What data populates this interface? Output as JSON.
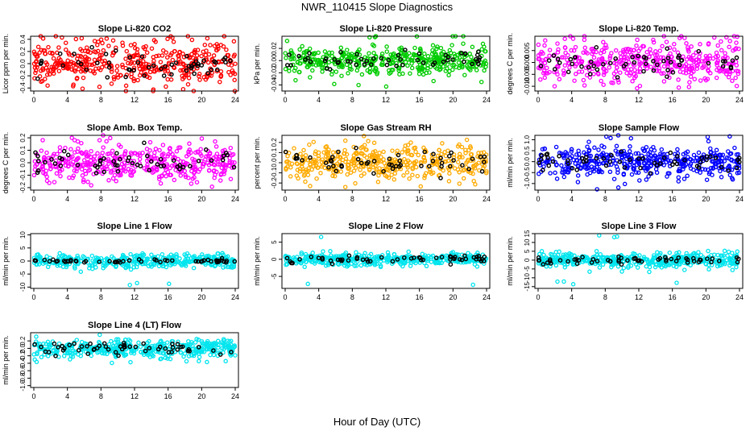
{
  "title": "NWR_110415  Slope Diagnostics",
  "xlabel": "Hour of Day (UTC)",
  "chart_data": [
    {
      "type": "scatter",
      "title": "Slope Li-820 CO2",
      "ylabel": "Licor ppm per min.",
      "color": "#ff0000",
      "xlim": [
        0,
        24
      ],
      "ylim": [
        -0.45,
        0.45
      ],
      "yticks": [
        "0.4",
        "0.2",
        "0.0",
        "-0.2",
        "-0.4"
      ],
      "ytick_values": [
        0.4,
        0.2,
        0.0,
        -0.2,
        -0.4
      ],
      "xticks": [
        "0",
        "4",
        "8",
        "12",
        "16",
        "20",
        "24"
      ],
      "spread": 0.17,
      "black_spread": 0.1,
      "outlier": 0.45
    },
    {
      "type": "scatter",
      "title": "Slope Li-820 Pressure",
      "ylabel": "kPa per min.",
      "color": "#00cc00",
      "xlim": [
        0,
        24
      ],
      "ylim": [
        -0.05,
        0.04
      ],
      "yticks": [
        "0.02",
        "0.00",
        "-0.02",
        "-0.04"
      ],
      "ytick_values": [
        0.02,
        0.0,
        -0.02,
        -0.04
      ],
      "xticks": [
        "0",
        "4",
        "8",
        "12",
        "16",
        "20",
        "24"
      ],
      "spread": 0.012,
      "black_spread": 0.008,
      "outlier": 0.045
    },
    {
      "type": "scatter",
      "title": "Slope Li-820 Temp.",
      "ylabel": "degrees C per min.",
      "color": "#ff00ff",
      "xlim": [
        0,
        24
      ],
      "ylim": [
        -0.012,
        0.011
      ],
      "yticks": [
        "0.005",
        "0.000",
        "-0.005",
        "-0.010"
      ],
      "ytick_values": [
        0.005,
        0.0,
        -0.005,
        -0.01
      ],
      "xticks": [
        "0",
        "4",
        "8",
        "12",
        "16",
        "20",
        "24"
      ],
      "spread": 0.0045,
      "black_spread": 0.003,
      "outlier": 0.011
    },
    {
      "type": "scatter",
      "title": "Slope Amb. Box Temp.",
      "ylabel": "degrees C per min.",
      "color": "#ff00ff",
      "xlim": [
        0,
        24
      ],
      "ylim": [
        -0.22,
        0.22
      ],
      "yticks": [
        "0.2",
        "0.1",
        "0.0",
        "-0.1",
        "-0.2"
      ],
      "ytick_values": [
        0.2,
        0.1,
        0.0,
        -0.1,
        -0.2
      ],
      "xticks": [
        "0",
        "4",
        "8",
        "12",
        "16",
        "20",
        "24"
      ],
      "spread": 0.07,
      "black_spread": 0.06,
      "outlier": 0.2
    },
    {
      "type": "scatter",
      "title": "Slope Gas Stream RH",
      "ylabel": "percent per min.",
      "color": "#ffaa00",
      "xlim": [
        0,
        24
      ],
      "ylim": [
        -0.27,
        0.27
      ],
      "yticks": [
        "0.2",
        "0.1",
        "0.0",
        "-0.1",
        "-0.2"
      ],
      "ytick_values": [
        0.2,
        0.1,
        0.0,
        -0.1,
        -0.2
      ],
      "xticks": [
        "0",
        "4",
        "8",
        "12",
        "16",
        "20",
        "24"
      ],
      "spread": 0.08,
      "black_spread": 0.06,
      "outlier": 0.25
    },
    {
      "type": "scatter",
      "title": "Slope Sample Flow",
      "ylabel": "ml/min per min.",
      "color": "#0000ff",
      "xlim": [
        0,
        24
      ],
      "ylim": [
        -1.3,
        1.2
      ],
      "yticks": [
        "1.0",
        "0.5",
        "0.0",
        "-0.5",
        "-1.0"
      ],
      "ytick_values": [
        1.0,
        0.5,
        0.0,
        -0.5,
        -1.0
      ],
      "xticks": [
        "0",
        "4",
        "8",
        "12",
        "16",
        "20",
        "24"
      ],
      "spread": 0.35,
      "black_spread": 0.25,
      "outlier": 1.2
    },
    {
      "type": "scatter",
      "title": "Slope Line 1 Flow",
      "ylabel": "ml/min per min.",
      "color": "#00e5ee",
      "xlim": [
        0,
        24
      ],
      "ylim": [
        -10.5,
        10.5
      ],
      "yticks": [
        "10",
        "5",
        "0",
        "-5",
        "-10"
      ],
      "ytick_values": [
        10,
        5,
        0,
        -5,
        -10
      ],
      "xticks": [
        "0",
        "4",
        "8",
        "12",
        "16",
        "20",
        "24"
      ],
      "spread": 1.3,
      "black_spread": 0.4,
      "outlier": 9.5
    },
    {
      "type": "scatter",
      "title": "Slope Line 2 Flow",
      "ylabel": "ml/min per min.",
      "color": "#00e5ee",
      "xlim": [
        0,
        24
      ],
      "ylim": [
        -8.5,
        7.5
      ],
      "yticks": [
        "5",
        "0",
        "-5"
      ],
      "ytick_values": [
        5,
        0,
        -5
      ],
      "xticks": [
        "0",
        "4",
        "8",
        "12",
        "16",
        "20",
        "24"
      ],
      "spread": 0.9,
      "black_spread": 0.6,
      "outlier": 7.5
    },
    {
      "type": "scatter",
      "title": "Slope Line 3 Flow",
      "ylabel": "ml/min per min.",
      "color": "#00e5ee",
      "xlim": [
        0,
        24
      ],
      "ylim": [
        -16,
        15
      ],
      "yticks": [
        "15",
        "10",
        "5",
        "0",
        "-5",
        "-10",
        "-15"
      ],
      "ytick_values": [
        15,
        10,
        5,
        0,
        -5,
        -10,
        -15
      ],
      "xticks": [
        "0",
        "4",
        "8",
        "12",
        "16",
        "20",
        "24"
      ],
      "spread": 2.0,
      "black_spread": 1.2,
      "outlier": 14
    },
    {
      "type": "scatter",
      "title": "Slope Line 4 (LT) Flow",
      "ylabel": "ml/min per min.",
      "color": "#00e5ee",
      "xlim": [
        0,
        24
      ],
      "ylim": [
        -1.05,
        0.42
      ],
      "yticks": [
        "0.2",
        "0.0",
        "-0.2",
        "-0.4",
        "-0.6",
        "-0.8",
        "-1.0"
      ],
      "ytick_values": [
        0.2,
        0.0,
        -0.2,
        -0.4,
        -0.6,
        -0.8,
        -1.0
      ],
      "xticks": [
        "0",
        "4",
        "8",
        "12",
        "16",
        "20",
        "24"
      ],
      "spread": 0.12,
      "black_spread": 0.1,
      "outlier": 0.4
    }
  ]
}
